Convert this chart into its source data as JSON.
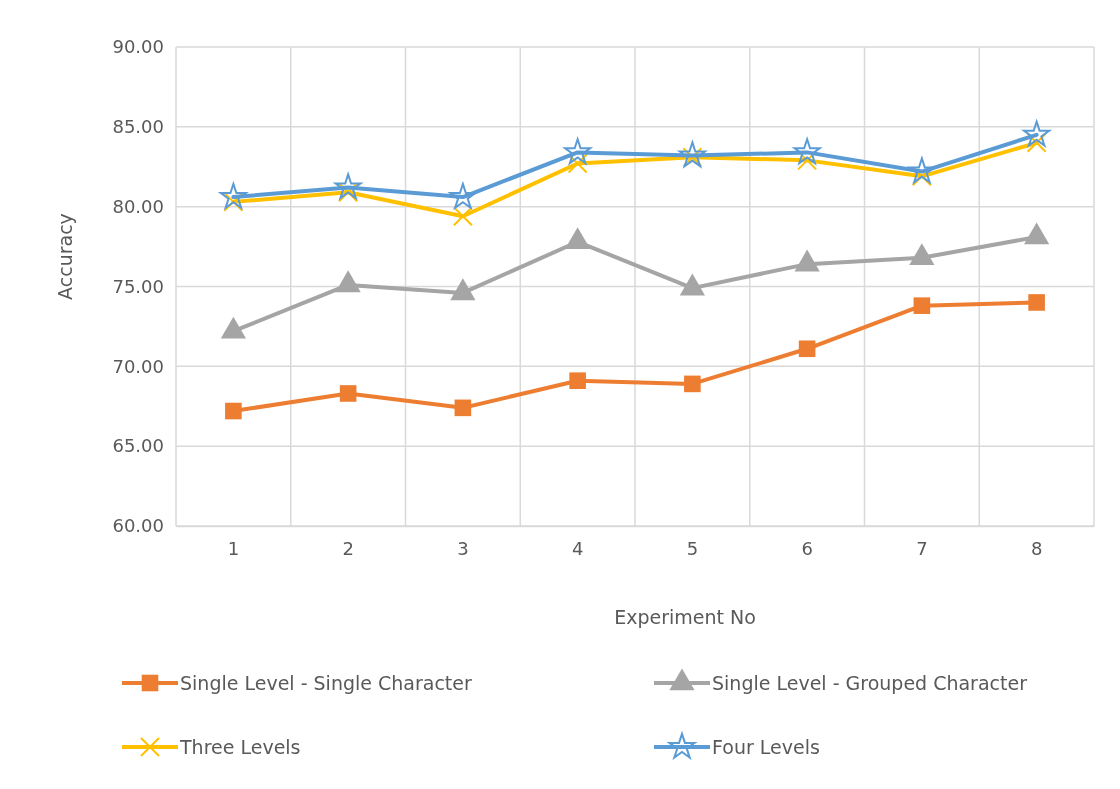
{
  "chart_data": {
    "type": "line",
    "xlabel": "Experiment No",
    "ylabel": "Accuracy",
    "categories": [
      "1",
      "2",
      "3",
      "4",
      "5",
      "6",
      "7",
      "8"
    ],
    "ylim": [
      60,
      90
    ],
    "yticks": [
      {
        "value": 60,
        "label": "60.00"
      },
      {
        "value": 65,
        "label": "65.00"
      },
      {
        "value": 70,
        "label": "70.00"
      },
      {
        "value": 75,
        "label": "75.00"
      },
      {
        "value": 80,
        "label": "80.00"
      },
      {
        "value": 85,
        "label": "85.00"
      },
      {
        "value": 90,
        "label": "90.00"
      }
    ],
    "grid": true,
    "legend": "bottom",
    "series": [
      {
        "name": "Single Level - Single Character",
        "color": "#ed7d31",
        "marker": "square",
        "values": [
          67.2,
          68.3,
          67.4,
          69.1,
          68.9,
          71.1,
          73.8,
          74.0
        ]
      },
      {
        "name": "Single Level - Grouped Character",
        "color": "#a5a5a5",
        "marker": "triangle",
        "values": [
          72.2,
          75.1,
          74.6,
          77.8,
          74.9,
          76.4,
          76.8,
          78.1
        ]
      },
      {
        "name": "Three Levels",
        "color": "#ffc000",
        "marker": "cross",
        "values": [
          80.3,
          80.9,
          79.4,
          82.7,
          83.1,
          82.9,
          81.9,
          84.0
        ]
      },
      {
        "name": "Four Levels",
        "color": "#5b9bd5",
        "marker": "star",
        "values": [
          80.6,
          81.2,
          80.6,
          83.4,
          83.2,
          83.4,
          82.2,
          84.5
        ]
      }
    ]
  }
}
